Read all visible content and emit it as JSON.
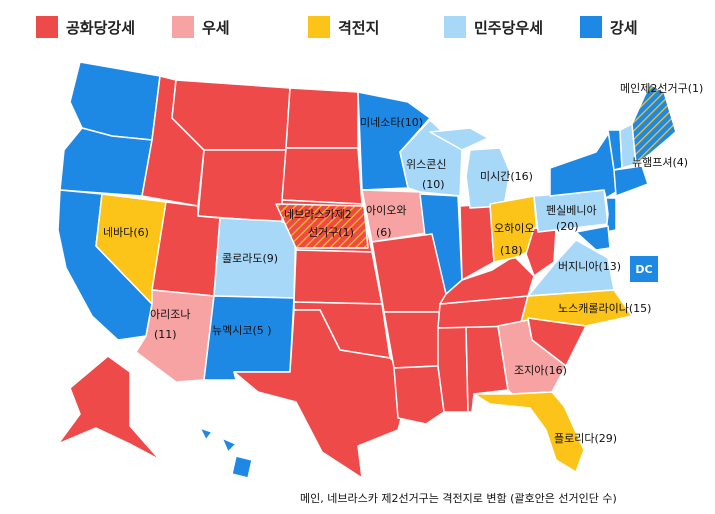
{
  "legend": [
    {
      "label": "공화당강세",
      "color": "#ef4a4a"
    },
    {
      "label": "우세",
      "color": "#f7a3a3"
    },
    {
      "label": "격전지",
      "color": "#fcc419"
    },
    {
      "label": "민주당우세",
      "color": "#a8d8f8"
    },
    {
      "label": "강세",
      "color": "#1e88e5"
    }
  ],
  "colors": {
    "solid_rep": "#ef4a4a",
    "lean_rep": "#f7a3a3",
    "tossup": "#fcc419",
    "lean_dem": "#a8d8f8",
    "solid_dem": "#1e88e5",
    "border": "#ffffff"
  },
  "labels": {
    "nevada": "네바다(6)",
    "nebraska_line1": "네브라스카제2",
    "nebraska_line2": "선거구(1)",
    "iowa_line1": "아이오와",
    "iowa_line2": "(6)",
    "minnesota": "미네소타(10)",
    "wisconsin_line1": "위스콘신",
    "wisconsin_line2": "(10)",
    "michigan": "미시간(16)",
    "ohio_line1": "오하이오",
    "ohio_line2": "(18)",
    "pennsylvania_line1": "펜실베니아",
    "pennsylvania_line2": "(20)",
    "virginia": "버지니아(13)",
    "dc": "DC",
    "colorado": "콜로라도(9)",
    "arizona_line1": "아리조나",
    "arizona_line2": "(11)",
    "new_mexico": "뉴멕시코(5 )",
    "north_carolina": "노스캐롤라이나(15)",
    "georgia": "조지아(16)",
    "florida": "플로리다(29)",
    "maine": "메인제2선거구(1)",
    "new_hampshire": "뉴햄프셔(4)"
  },
  "footnote": "메인, 네브라스카 제2선거구는 격전지로 변함 (괄호안은 선거인단 수)"
}
